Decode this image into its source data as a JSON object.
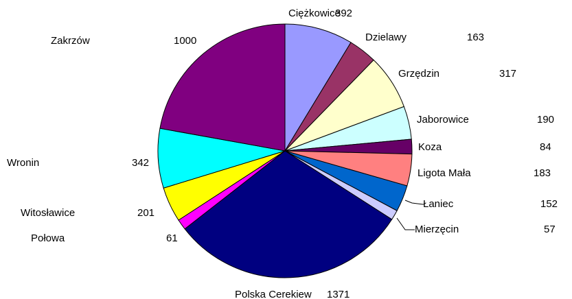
{
  "chart_data": {
    "type": "pie",
    "categories": [
      "Ciężkowice",
      "Dzielawy",
      "Grzędzin",
      "Jaborowice",
      "Koza",
      "Ligota Mała",
      "Łaniec",
      "Mierzęcin",
      "Polska Cerekiew",
      "Połowa",
      "Witosławice",
      "Wronin",
      "Zakrzów"
    ],
    "values": [
      392,
      163,
      317,
      190,
      84,
      183,
      152,
      57,
      1371,
      61,
      201,
      342,
      1000
    ],
    "colors": [
      "#9999ff",
      "#993366",
      "#ffffcc",
      "#ccffff",
      "#660066",
      "#ff8080",
      "#0066cc",
      "#ccccff",
      "#000080",
      "#ff00ff",
      "#ffff00",
      "#00ffff",
      "#800080"
    ]
  }
}
